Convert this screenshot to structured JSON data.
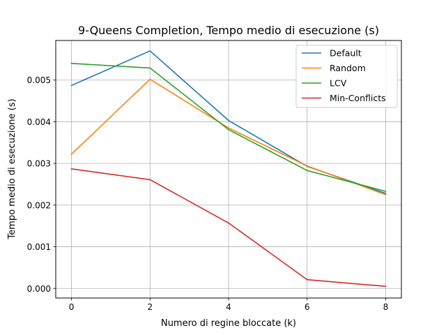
{
  "chart_data": {
    "type": "line",
    "title": "9-Queens Completion, Tempo medio di esecuzione (s)",
    "xlabel": "Numero di regine bloccate (k)",
    "ylabel": "Tempo medio di esecuzione (s)",
    "x": [
      0,
      2,
      4,
      6,
      8
    ],
    "xlim": [
      -0.4,
      8.4
    ],
    "ylim": [
      -0.00023,
      0.00595
    ],
    "xticks": [
      0,
      2,
      4,
      6,
      8
    ],
    "xtick_labels": [
      "0",
      "2",
      "4",
      "6",
      "8"
    ],
    "yticks": [
      0.0,
      0.001,
      0.002,
      0.003,
      0.004,
      0.005
    ],
    "ytick_labels": [
      "0.000",
      "0.001",
      "0.002",
      "0.003",
      "0.004",
      "0.005"
    ],
    "grid": true,
    "legend_position": "top-right",
    "series": [
      {
        "name": "Default",
        "color": "#1f77b4",
        "values": [
          0.00487,
          0.0057,
          0.00403,
          0.00293,
          0.00228
        ]
      },
      {
        "name": "Random",
        "color": "#ff7f0e",
        "values": [
          0.00322,
          0.00502,
          0.00385,
          0.00294,
          0.00225
        ]
      },
      {
        "name": "LCV",
        "color": "#2ca02c",
        "values": [
          0.0054,
          0.00529,
          0.00381,
          0.00283,
          0.00233
        ]
      },
      {
        "name": "Min-Conflicts",
        "color": "#d62728",
        "values": [
          0.00287,
          0.00261,
          0.00157,
          0.00021,
          5e-05
        ]
      }
    ]
  }
}
